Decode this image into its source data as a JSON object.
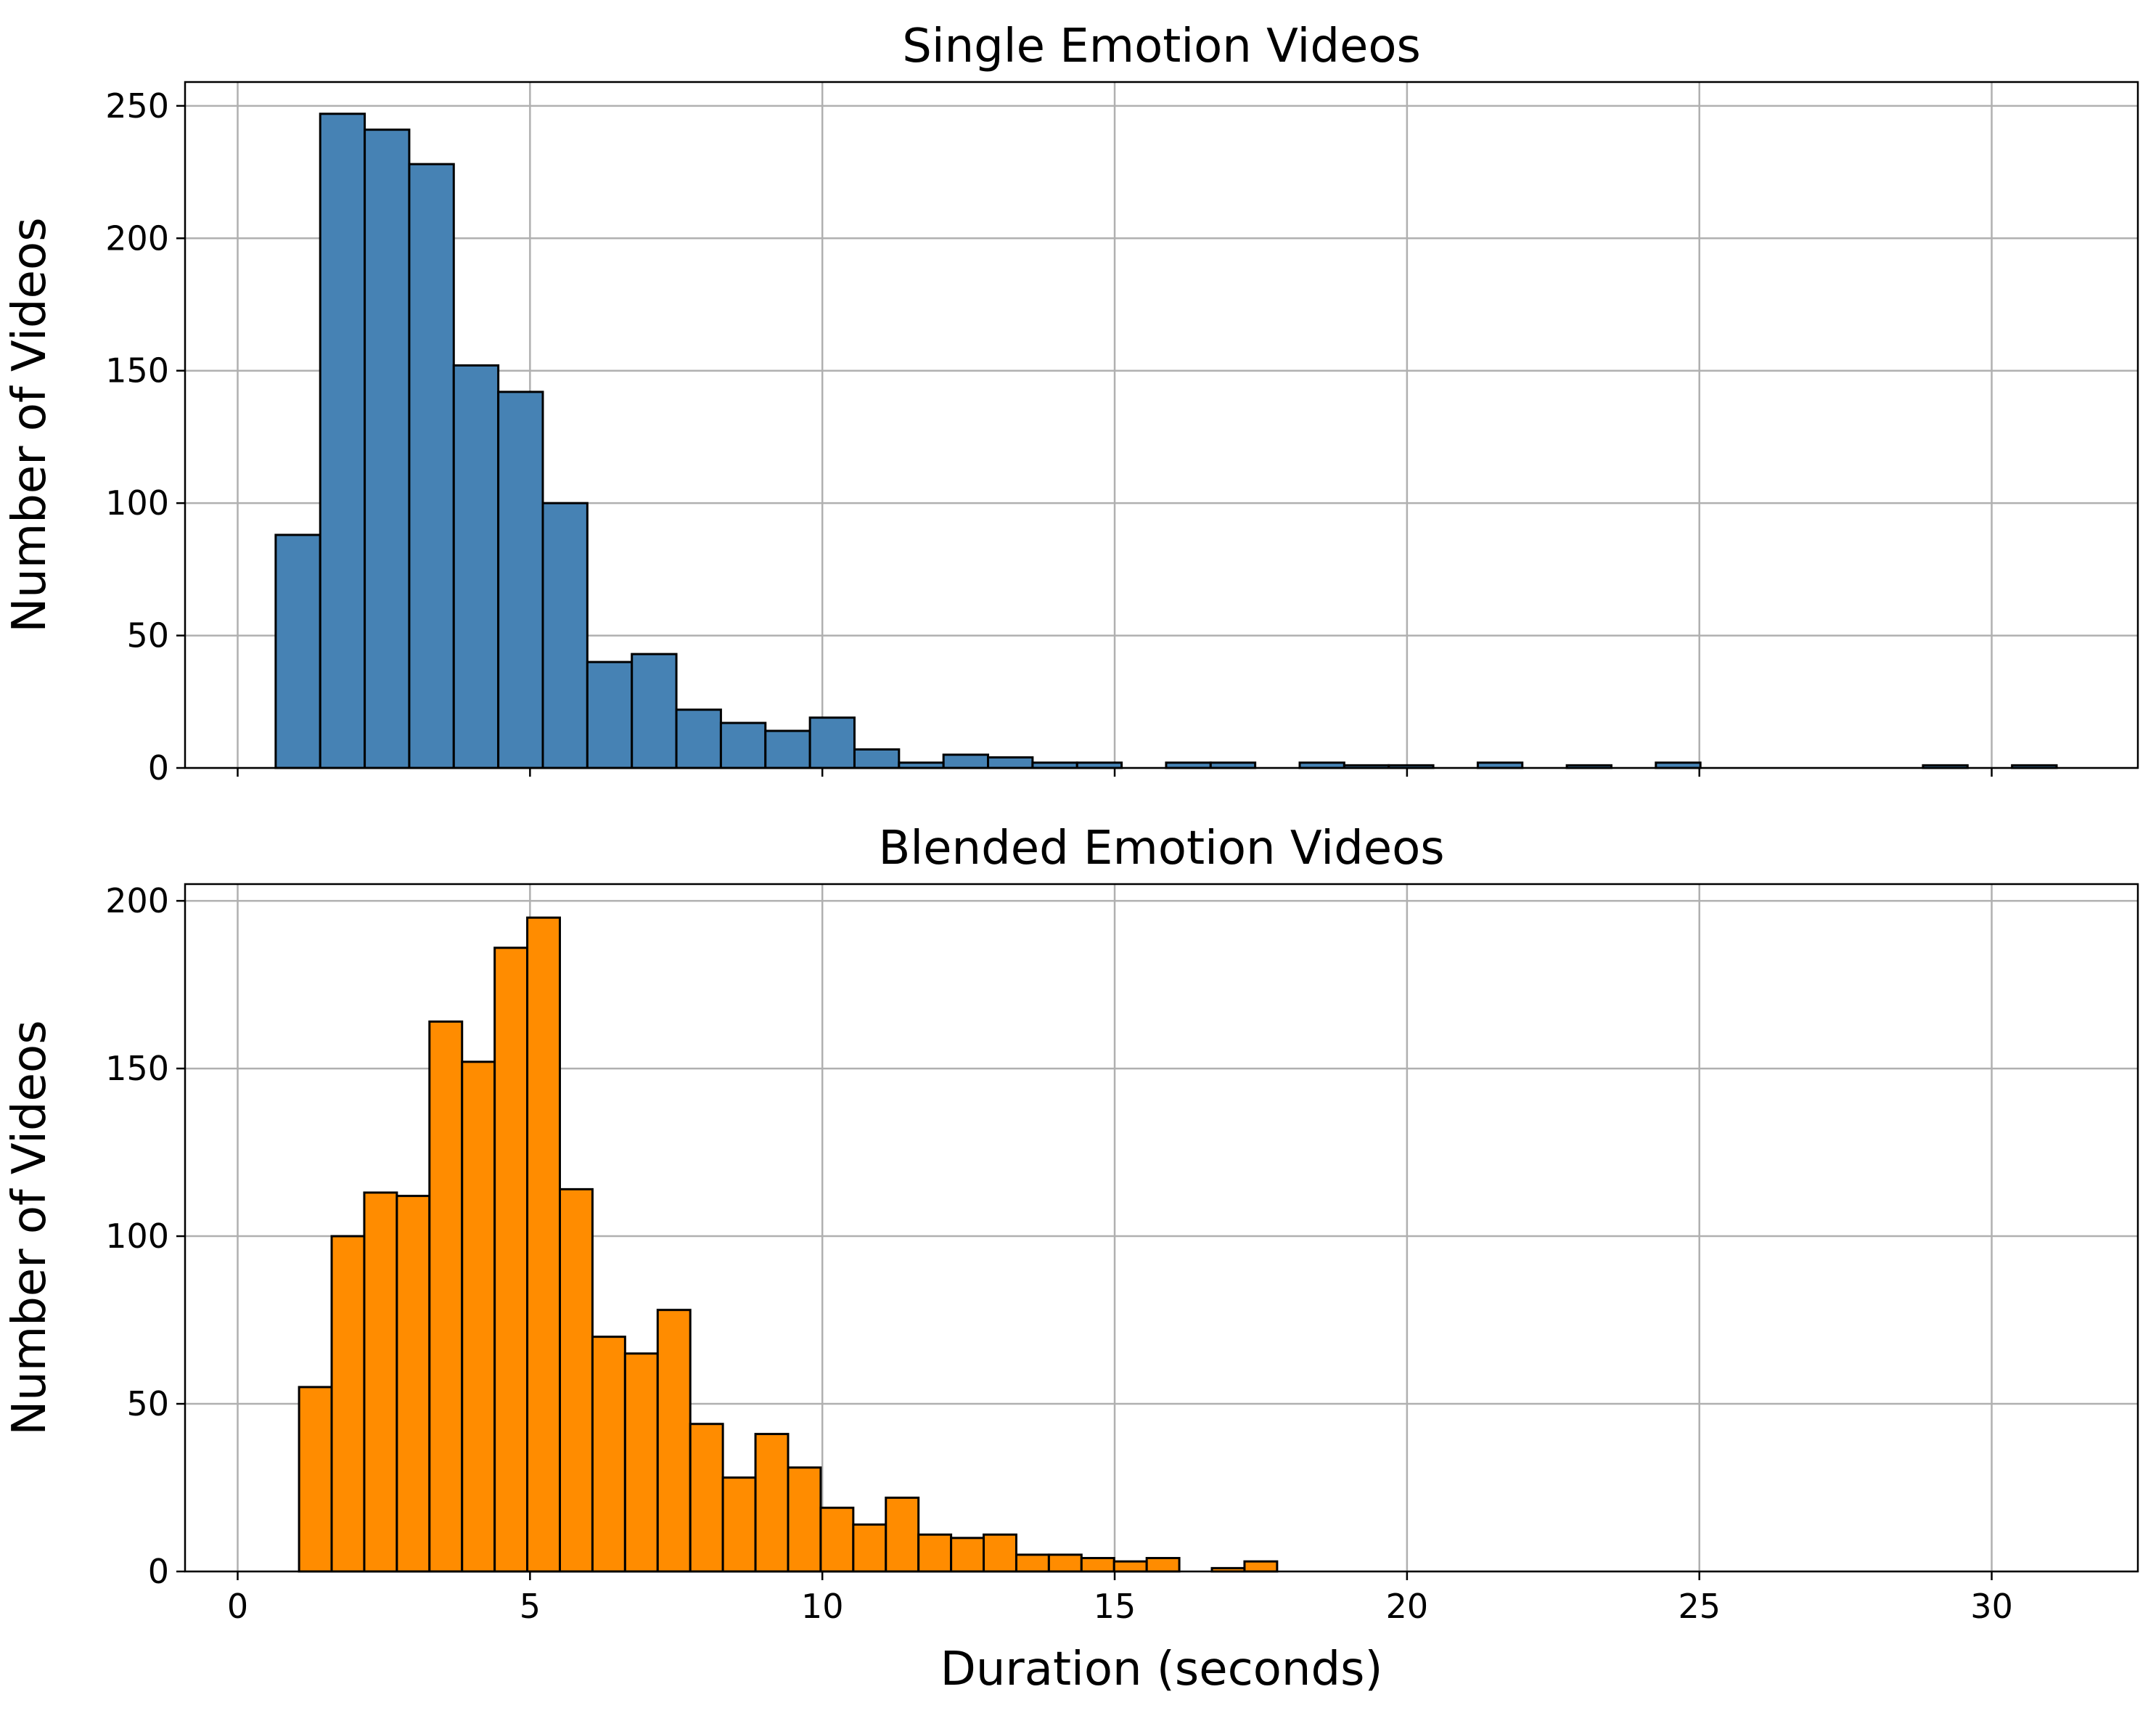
{
  "chart_data": [
    {
      "type": "bar",
      "title": "Single Emotion Videos",
      "xlabel": "",
      "ylabel": "Number of Videos",
      "color": "#4682b4",
      "grid": true,
      "xlim": [
        -0.9,
        32.5
      ],
      "ylim": [
        0,
        259
      ],
      "xticks": [
        0,
        5,
        10,
        15,
        20,
        25,
        30
      ],
      "yticks": [
        0,
        50,
        100,
        150,
        200,
        250
      ],
      "show_xtick_labels": false,
      "bin_start": 0.65,
      "bin_width": 0.7615,
      "values": [
        88,
        247,
        241,
        228,
        152,
        142,
        100,
        40,
        43,
        22,
        17,
        14,
        19,
        7,
        2,
        5,
        4,
        2,
        2,
        0,
        2,
        2,
        0,
        2,
        1,
        1,
        0,
        2,
        0,
        1,
        0,
        2,
        0,
        0,
        0,
        0,
        0,
        1,
        0,
        1
      ]
    },
    {
      "type": "bar",
      "title": "Blended Emotion Videos",
      "xlabel": "Duration (seconds)",
      "ylabel": "Number of Videos",
      "color": "#ff8c00",
      "grid": true,
      "xlim": [
        -0.9,
        32.5
      ],
      "ylim": [
        0,
        205
      ],
      "xticks": [
        0,
        5,
        10,
        15,
        20,
        25,
        30
      ],
      "yticks": [
        0,
        50,
        100,
        150,
        200
      ],
      "show_xtick_labels": true,
      "bin_start": 1.05,
      "bin_width": 0.5576,
      "values": [
        55,
        100,
        113,
        112,
        164,
        152,
        186,
        195,
        114,
        70,
        65,
        78,
        44,
        28,
        41,
        31,
        19,
        14,
        22,
        11,
        10,
        11,
        5,
        5,
        4,
        3,
        4,
        0,
        1,
        3
      ]
    }
  ]
}
